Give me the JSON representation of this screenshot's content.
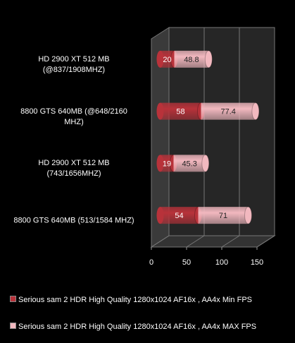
{
  "chart_data": {
    "type": "bar3d-stacked-horizontal",
    "categories": [
      "HD 2900 XT 512 MB\n(@837/1908MHZ)",
      "8800 GTS 640MB (@648/2160\nMHZ)",
      "HD 2900 XT 512 MB\n(743/1656MHZ)",
      "8800 GTS 640MB (513/1584 MHZ)"
    ],
    "series": [
      {
        "name": "Serious sam 2 HDR High Quality  1280x1024 AF16x , AA4x Min FPS",
        "color": "#b8323a",
        "values": [
          20,
          58,
          19,
          54
        ]
      },
      {
        "name": "Serious sam 2 HDR High Quality  1280x1024 AF16x , AA4x MAX FPS",
        "color": "#f2b8bf",
        "values": [
          48.8,
          77.4,
          45.3,
          71
        ]
      }
    ],
    "xlim": [
      0,
      150
    ],
    "xticks": [
      0,
      50,
      100,
      150
    ],
    "grid": true
  }
}
